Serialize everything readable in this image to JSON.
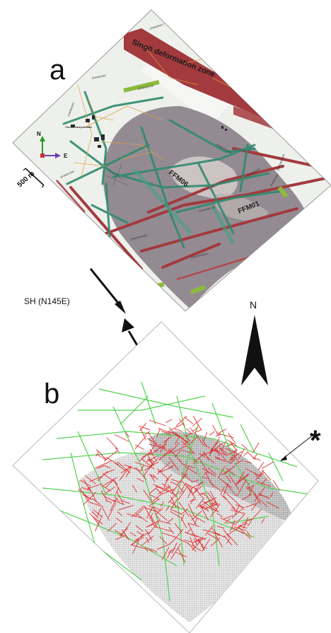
{
  "panels": {
    "a": {
      "letter": "a"
    },
    "b": {
      "letter": "b"
    }
  },
  "map": {
    "zone_label": "Singö deformation zone",
    "deformation_zones": [
      "FFM06",
      "FFM01"
    ],
    "power_station_label": "Forsmark nuclear power station",
    "scale_label": "500 m",
    "compass": {
      "north": "N",
      "east": "E"
    },
    "small_labels": [
      "ZFMNW0017",
      "ZFMNE0060",
      "ZFMNE00A2",
      "ZFMENE0159",
      "ZFMNE00A3",
      "ZFMENE0060A",
      "ZFMWNW0044",
      "ZFMNNE0725",
      "ZFMNE0061",
      "ZFMNW1200",
      "ZFMENE00062",
      "ZFMWNW0813"
    ]
  },
  "stress": {
    "label": "SH (N145E)"
  },
  "north_arrow": {
    "label": "N"
  },
  "marker": {
    "label": "*"
  },
  "colors": {
    "deformation_zone": "#a33a3e",
    "fracture_green": "#2e8a6e",
    "lens_gray": "#8a8088",
    "model_red": "#e03030",
    "model_green": "#4fd34f"
  }
}
